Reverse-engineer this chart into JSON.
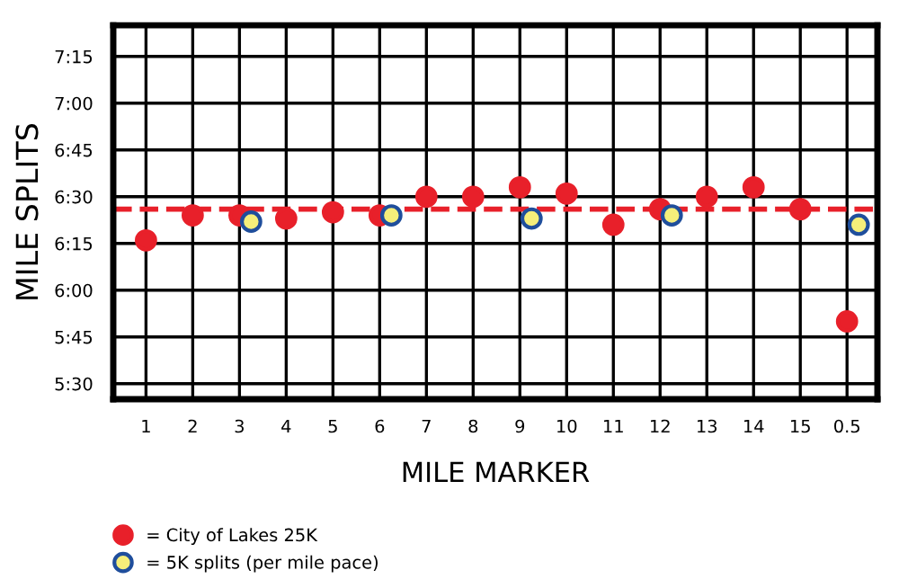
{
  "chart_data": {
    "type": "scatter",
    "xlabel": "MILE MARKER",
    "ylabel": "MILE SPLITS",
    "categories": [
      "1",
      "2",
      "3",
      "4",
      "5",
      "6",
      "7",
      "8",
      "9",
      "10",
      "11",
      "12",
      "13",
      "14",
      "15",
      "0.5"
    ],
    "ylim": [
      325,
      445
    ],
    "yticks": [
      {
        "value": 330,
        "label": "5:30"
      },
      {
        "value": 345,
        "label": "5:45"
      },
      {
        "value": 360,
        "label": "6:00"
      },
      {
        "value": 375,
        "label": "6:15"
      },
      {
        "value": 390,
        "label": "6:30"
      },
      {
        "value": 405,
        "label": "6:45"
      },
      {
        "value": 420,
        "label": "7:00"
      },
      {
        "value": 435,
        "label": "7:15"
      }
    ],
    "series": [
      {
        "name": "= City of Lakes 25K",
        "color": "#e8202a",
        "values": [
          376,
          384,
          384,
          383,
          385,
          384,
          390,
          390,
          393,
          391,
          381,
          386,
          390,
          393,
          386,
          350
        ]
      },
      {
        "name": "= 5K splits (per mile pace)",
        "color": "#f5ee7a",
        "x": [
          "3",
          "6",
          "9",
          "12",
          "0.5"
        ],
        "values": [
          382,
          384,
          383,
          384,
          381
        ]
      }
    ],
    "ref_lines": [
      {
        "axis": "y",
        "value": 386,
        "color": "#e8202a",
        "line_style": "dashed"
      }
    ],
    "grid": true,
    "legend": "bottom left",
    "marker": "circle"
  }
}
